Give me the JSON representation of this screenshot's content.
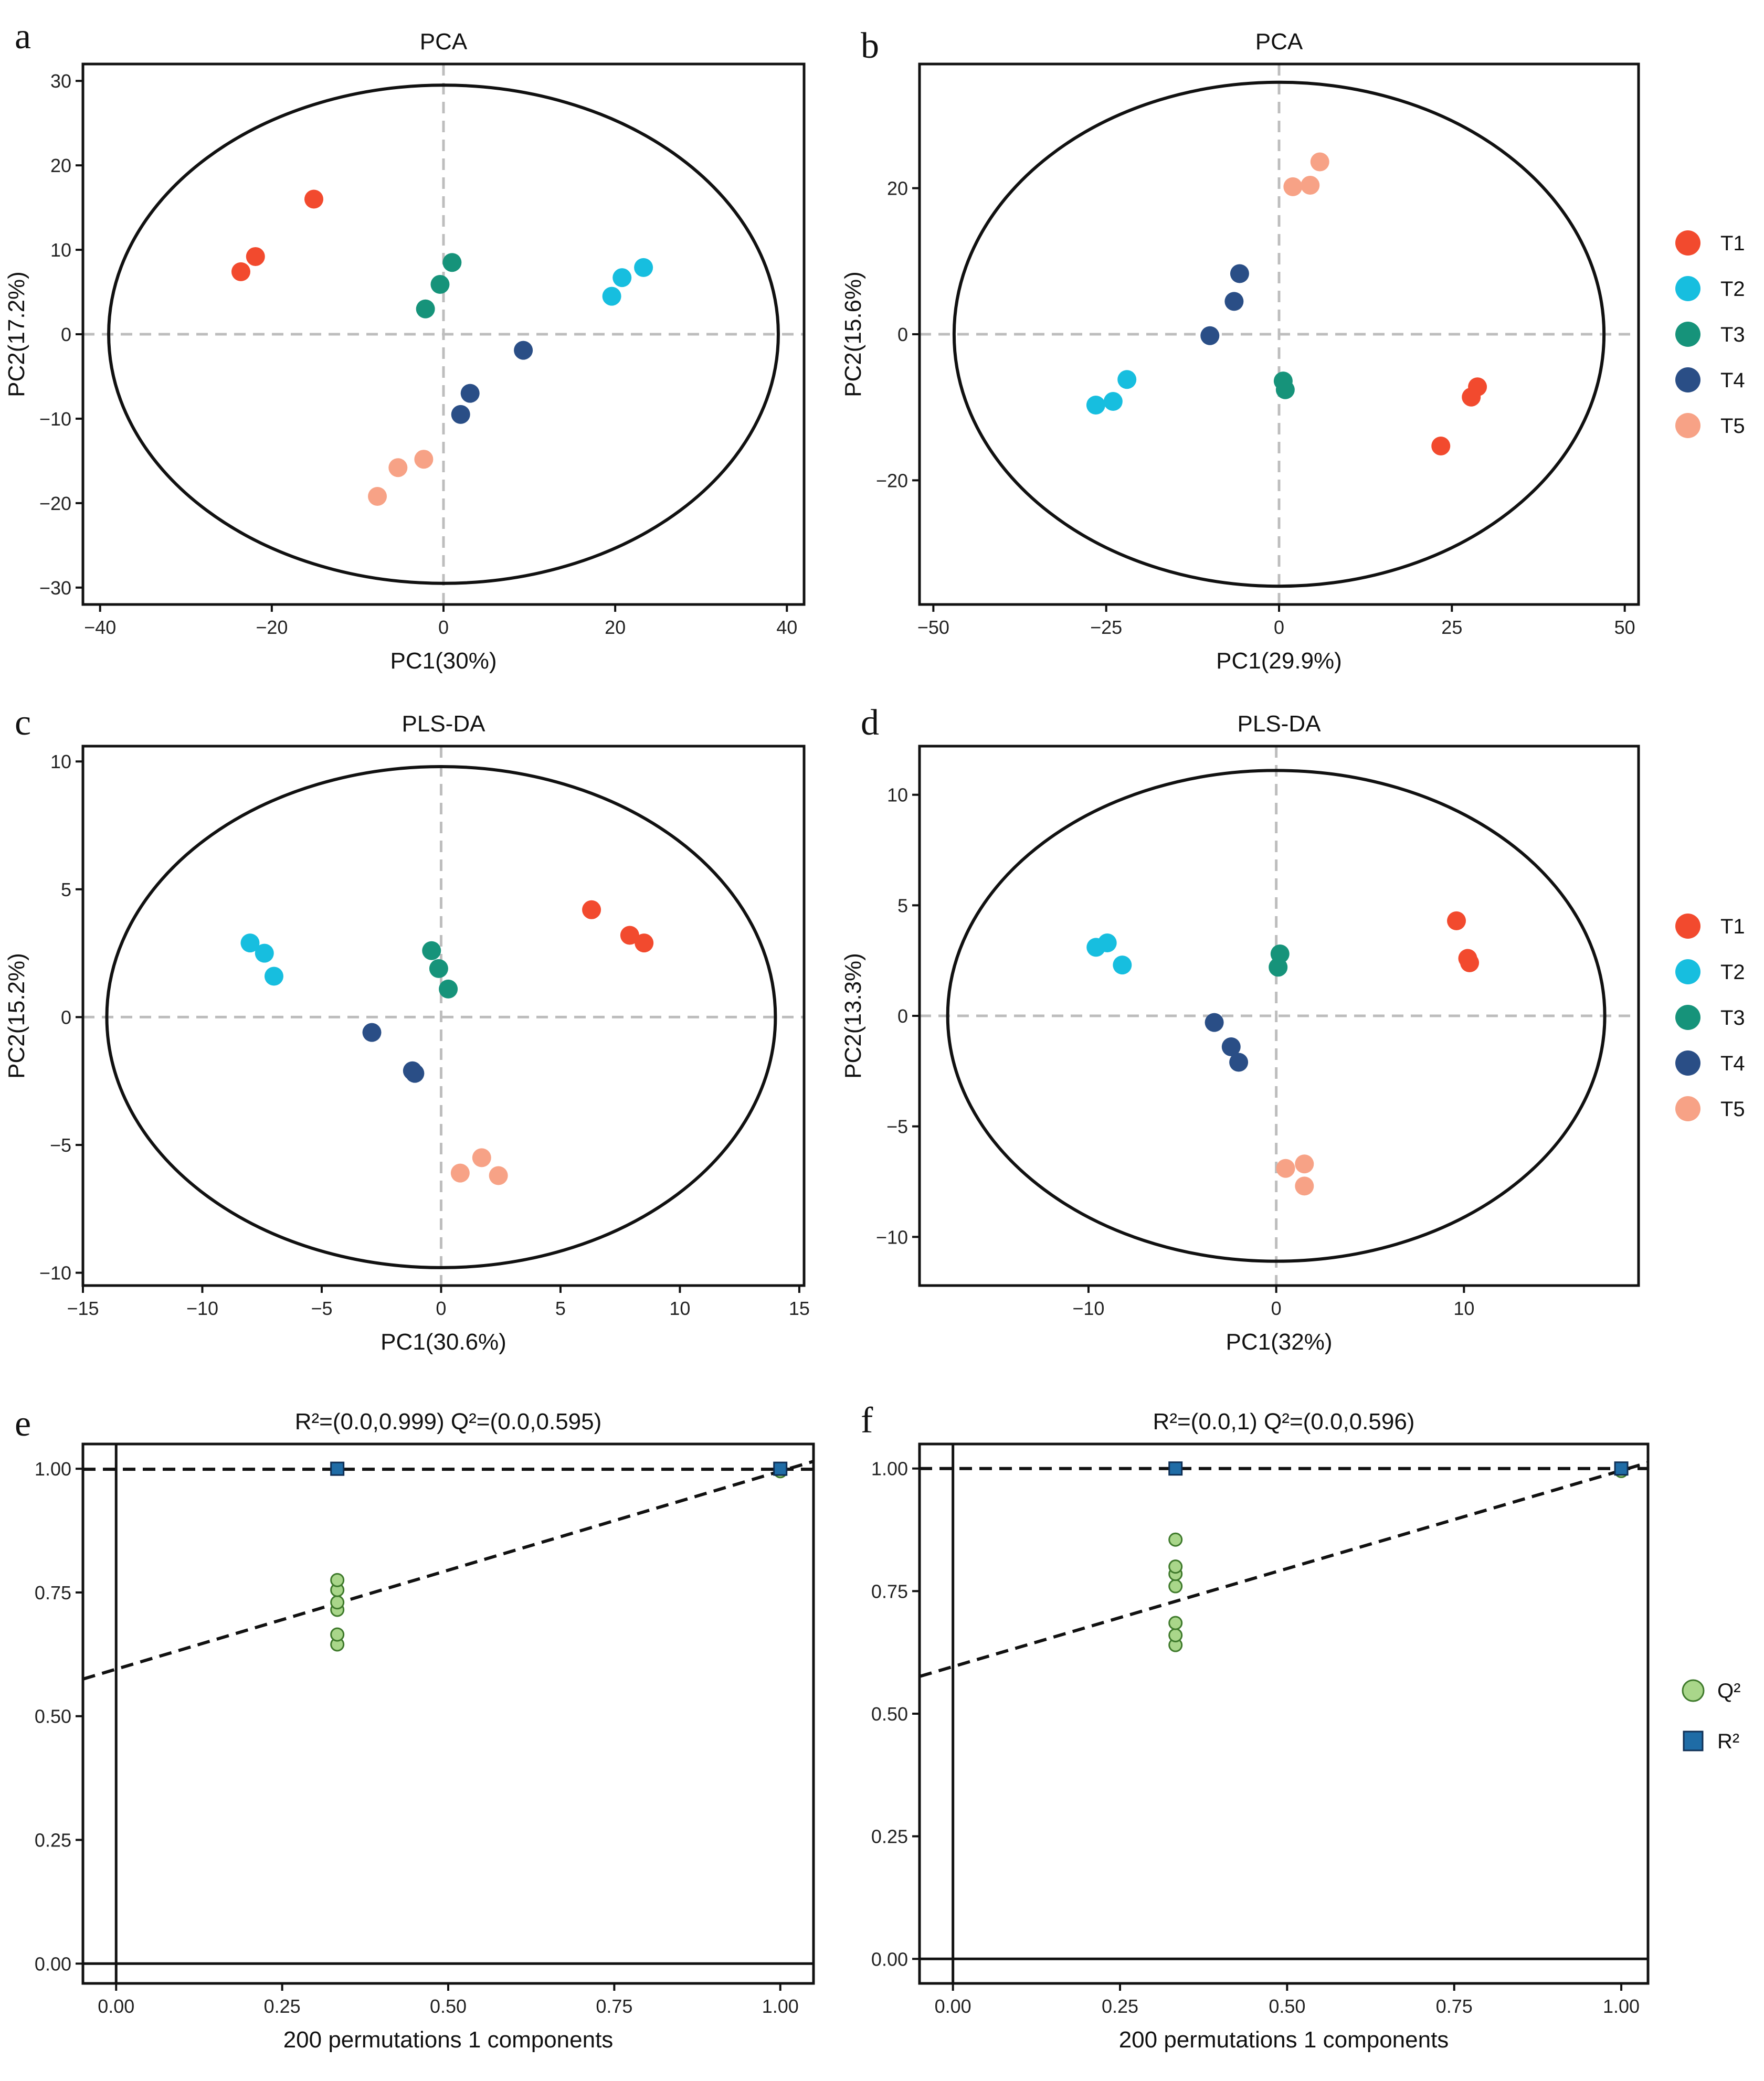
{
  "chart_data": [
    {
      "panel": "a",
      "type": "scatter",
      "title": "PCA",
      "xlabel": "PC1(30%)",
      "ylabel": "PC2(17.2%)",
      "xlim": [
        -42,
        42
      ],
      "ylim": [
        -32,
        32
      ],
      "xticks": [
        -40,
        -20,
        0,
        20,
        40
      ],
      "yticks": [
        -30,
        -20,
        -10,
        0,
        10,
        20,
        30
      ],
      "ellipse": {
        "cx": 0,
        "cy": 0,
        "rx": 39,
        "ry": 29.5
      },
      "series": [
        {
          "name": "T1",
          "color": "#F24A2E",
          "points": [
            [
              -23.6,
              7.4
            ],
            [
              -21.9,
              9.2
            ],
            [
              -15.1,
              16.0
            ]
          ]
        },
        {
          "name": "T2",
          "color": "#17BEDF",
          "points": [
            [
              19.6,
              4.5
            ],
            [
              20.8,
              6.7
            ],
            [
              23.3,
              7.9
            ]
          ]
        },
        {
          "name": "T3",
          "color": "#16937A",
          "points": [
            [
              -2.1,
              3.0
            ],
            [
              -0.4,
              5.9
            ],
            [
              1.0,
              8.5
            ]
          ]
        },
        {
          "name": "T4",
          "color": "#2A4E86",
          "points": [
            [
              9.3,
              -1.9
            ],
            [
              3.1,
              -7.0
            ],
            [
              2.0,
              -9.5
            ]
          ]
        },
        {
          "name": "T5",
          "color": "#F7A286",
          "points": [
            [
              -7.7,
              -19.2
            ],
            [
              -5.3,
              -15.8
            ],
            [
              -2.3,
              -14.8
            ]
          ]
        }
      ]
    },
    {
      "panel": "b",
      "type": "scatter",
      "title": "PCA",
      "xlabel": "PC1(29.9%)",
      "ylabel": "PC2(15.6%)",
      "xlim": [
        -52,
        52
      ],
      "ylim": [
        -37,
        37
      ],
      "xticks": [
        -50,
        -25,
        0,
        25,
        50
      ],
      "yticks": [
        -20,
        0,
        20
      ],
      "ellipse": {
        "cx": 0,
        "cy": 0,
        "rx": 47,
        "ry": 34.5
      },
      "series": [
        {
          "name": "T1",
          "color": "#F24A2E",
          "points": [
            [
              23.4,
              -15.3
            ],
            [
              27.8,
              -8.6
            ],
            [
              28.7,
              -7.2
            ]
          ]
        },
        {
          "name": "T2",
          "color": "#17BEDF",
          "points": [
            [
              -26.5,
              -9.7
            ],
            [
              -24.0,
              -9.2
            ],
            [
              -22.0,
              -6.2
            ]
          ]
        },
        {
          "name": "T3",
          "color": "#16937A",
          "points": [
            [
              0.6,
              -6.4
            ],
            [
              0.9,
              -7.6
            ]
          ]
        },
        {
          "name": "T4",
          "color": "#2A4E86",
          "points": [
            [
              -10.0,
              -0.2
            ],
            [
              -6.5,
              4.5
            ],
            [
              -5.7,
              8.3
            ]
          ]
        },
        {
          "name": "T5",
          "color": "#F7A286",
          "points": [
            [
              2.0,
              20.2
            ],
            [
              4.5,
              20.4
            ],
            [
              5.9,
              23.6
            ]
          ]
        }
      ],
      "legend": {
        "position": "right",
        "labels": [
          "T1",
          "T2",
          "T3",
          "T4",
          "T5"
        ]
      }
    },
    {
      "panel": "c",
      "type": "scatter",
      "title": "PLS-DA",
      "xlabel": "PC1(30.6%)",
      "ylabel": "PC2(15.2%)",
      "xlim": [
        -15,
        15.2
      ],
      "ylim": [
        -10.5,
        10.6
      ],
      "xticks": [
        -15,
        -10,
        -5,
        0,
        5,
        10,
        15
      ],
      "yticks": [
        -10,
        -5,
        0,
        5,
        10
      ],
      "ellipse": {
        "cx": 0,
        "cy": 0,
        "rx": 14.0,
        "ry": 9.8
      },
      "series": [
        {
          "name": "T1",
          "color": "#F24A2E",
          "points": [
            [
              6.3,
              4.2
            ],
            [
              7.9,
              3.2
            ],
            [
              8.5,
              2.9
            ]
          ]
        },
        {
          "name": "T2",
          "color": "#17BEDF",
          "points": [
            [
              -8.0,
              2.9
            ],
            [
              -7.4,
              2.5
            ],
            [
              -7.0,
              1.6
            ]
          ]
        },
        {
          "name": "T3",
          "color": "#16937A",
          "points": [
            [
              -0.4,
              2.6
            ],
            [
              -0.1,
              1.9
            ],
            [
              0.3,
              1.1
            ]
          ]
        },
        {
          "name": "T4",
          "color": "#2A4E86",
          "points": [
            [
              -2.9,
              -0.6
            ],
            [
              -1.2,
              -2.1
            ],
            [
              -1.1,
              -2.2
            ]
          ]
        },
        {
          "name": "T5",
          "color": "#F7A286",
          "points": [
            [
              0.8,
              -6.1
            ],
            [
              1.7,
              -5.5
            ],
            [
              2.4,
              -6.2
            ]
          ]
        }
      ]
    },
    {
      "panel": "d",
      "type": "scatter",
      "title": "PLS-DA",
      "xlabel": "PC1(32%)",
      "ylabel": "PC2(13.3%)",
      "xlim": [
        -19,
        19.3
      ],
      "ylim": [
        -12.2,
        12.2
      ],
      "xticks": [
        -10,
        0,
        10
      ],
      "yticks": [
        -10,
        -5,
        0,
        5,
        10
      ],
      "ellipse": {
        "cx": 0,
        "cy": 0,
        "rx": 17.5,
        "ry": 11.1
      },
      "series": [
        {
          "name": "T1",
          "color": "#F24A2E",
          "points": [
            [
              9.6,
              4.3
            ],
            [
              10.2,
              2.6
            ],
            [
              10.3,
              2.4
            ]
          ]
        },
        {
          "name": "T2",
          "color": "#17BEDF",
          "points": [
            [
              -9.6,
              3.1
            ],
            [
              -9.0,
              3.3
            ],
            [
              -8.2,
              2.3
            ]
          ]
        },
        {
          "name": "T3",
          "color": "#16937A",
          "points": [
            [
              0.2,
              2.8
            ],
            [
              0.1,
              2.2
            ]
          ]
        },
        {
          "name": "T4",
          "color": "#2A4E86",
          "points": [
            [
              -3.3,
              -0.3
            ],
            [
              -2.4,
              -1.4
            ],
            [
              -2.0,
              -2.1
            ]
          ]
        },
        {
          "name": "T5",
          "color": "#F7A286",
          "points": [
            [
              0.5,
              -6.9
            ],
            [
              1.5,
              -6.7
            ],
            [
              1.5,
              -7.7
            ]
          ]
        }
      ],
      "legend": {
        "position": "right",
        "labels": [
          "T1",
          "T2",
          "T3",
          "T4",
          "T5"
        ]
      }
    },
    {
      "panel": "e",
      "type": "scatter",
      "title": "R²=(0.0,0.999)   Q²=(0.0,0.595)",
      "xlabel": "200 permutations 1 components",
      "ylabel": "",
      "xlim": [
        -0.05,
        1.05
      ],
      "ylim": [
        -0.04,
        1.05
      ],
      "xticks": [
        0.0,
        0.25,
        0.5,
        0.75,
        1.0
      ],
      "yticks": [
        0.0,
        0.25,
        0.5,
        0.75,
        1.0
      ],
      "xtick_labels": [
        "0.00",
        "0.25",
        "0.50",
        "0.75",
        "1.00"
      ],
      "ytick_labels": [
        "0.00",
        "0.25",
        "0.50",
        "0.75",
        "1.00"
      ],
      "r2_line": {
        "intercept": 0.999,
        "slope": 0.0
      },
      "q2_line": {
        "intercept": 0.595,
        "slope": 0.4
      },
      "series": [
        {
          "name": "Q²",
          "color": "#A9D68A",
          "marker": "circle",
          "points": [
            [
              0.333,
              0.645
            ],
            [
              0.333,
              0.665
            ],
            [
              0.333,
              0.715
            ],
            [
              0.333,
              0.73
            ],
            [
              0.333,
              0.755
            ],
            [
              0.333,
              0.775
            ],
            [
              1.0,
              0.995
            ]
          ]
        },
        {
          "name": "R²",
          "color": "#1F6CA6",
          "marker": "square",
          "points": [
            [
              0.333,
              1.0
            ],
            [
              1.0,
              1.0
            ]
          ]
        }
      ]
    },
    {
      "panel": "f",
      "type": "scatter",
      "title": "R²=(0.0,1)   Q²=(0.0,0.596)",
      "xlabel": "200 permutations 1 components",
      "ylabel": "",
      "xlim": [
        -0.05,
        1.04
      ],
      "ylim": [
        -0.05,
        1.05
      ],
      "xticks": [
        0.0,
        0.25,
        0.5,
        0.75,
        1.0
      ],
      "yticks": [
        0.0,
        0.25,
        0.5,
        0.75,
        1.0
      ],
      "xtick_labels": [
        "0.00",
        "0.25",
        "0.50",
        "0.75",
        "1.00"
      ],
      "ytick_labels": [
        "0.00",
        "0.25",
        "0.50",
        "0.75",
        "1.00"
      ],
      "r2_line": {
        "intercept": 1.0,
        "slope": 0.0
      },
      "q2_line": {
        "intercept": 0.596,
        "slope": 0.4
      },
      "series": [
        {
          "name": "Q²",
          "color": "#A9D68A",
          "marker": "circle",
          "points": [
            [
              0.333,
              0.64
            ],
            [
              0.333,
              0.66
            ],
            [
              0.333,
              0.685
            ],
            [
              0.333,
              0.76
            ],
            [
              0.333,
              0.785
            ],
            [
              0.333,
              0.8
            ],
            [
              0.333,
              0.855
            ],
            [
              1.0,
              0.995
            ]
          ]
        },
        {
          "name": "R²",
          "color": "#1F6CA6",
          "marker": "square",
          "points": [
            [
              0.333,
              1.0
            ],
            [
              1.0,
              1.0
            ]
          ]
        }
      ],
      "legend": {
        "position": "right",
        "labels": [
          "Q²",
          "R²"
        ]
      }
    }
  ],
  "panel_labels": [
    "a",
    "b",
    "c",
    "d",
    "e",
    "f"
  ],
  "legend_groups": [
    "T1",
    "T2",
    "T3",
    "T4",
    "T5"
  ],
  "legend_perm": [
    "Q²",
    "R²"
  ]
}
